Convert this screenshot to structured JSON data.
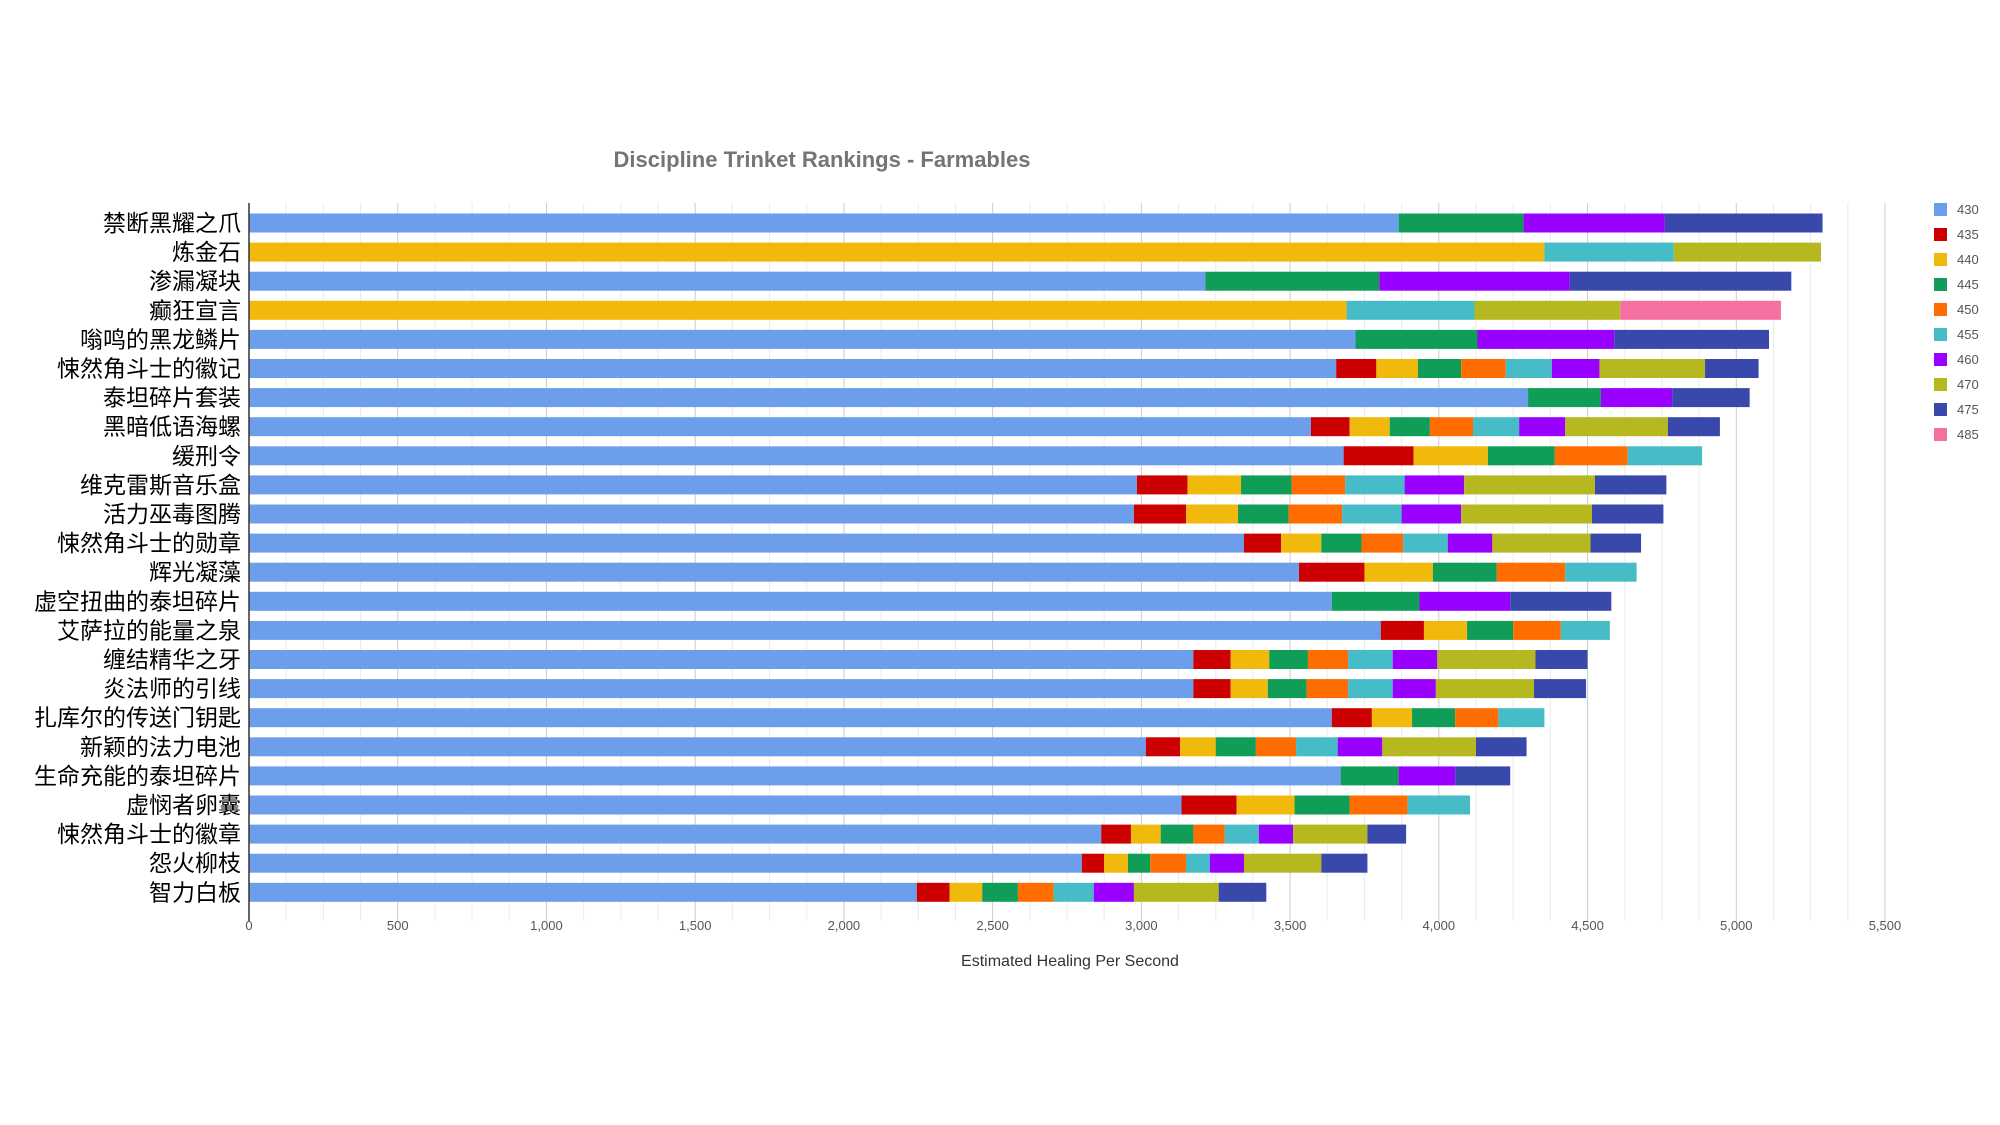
{
  "chart_data": {
    "type": "bar",
    "orientation": "horizontal",
    "stacked": true,
    "title": "Discipline Trinket Rankings - Farmables",
    "xlabel": "Estimated Healing Per Second",
    "ylabel": "",
    "xlim": [
      0,
      5500
    ],
    "xticks": [
      "0",
      "500",
      "1,000",
      "1,500",
      "2,000",
      "2,500",
      "3,000",
      "3,500",
      "4,000",
      "4,500",
      "5,000",
      "5,500"
    ],
    "grid": true,
    "legend_position": "right",
    "series_names": [
      "430",
      "435",
      "440",
      "445",
      "450",
      "455",
      "460",
      "470",
      "475",
      "485"
    ],
    "series_colors": [
      "#6d9eeb",
      "#cc0000",
      "#f1b90b",
      "#0f9d58",
      "#ff6d00",
      "#46bdc6",
      "#9900ff",
      "#b6b81f",
      "#3949ab",
      "#f56fa1"
    ],
    "categories": [
      "禁断黑耀之爪",
      "炼金石",
      "渗漏凝块",
      "癫狂宣言",
      "嗡鸣的黑龙鳞片",
      "悚然角斗士的徽记",
      "泰坦碎片套装",
      "黑暗低语海螺",
      "缓刑令",
      "维克雷斯音乐盒",
      "活力巫毒图腾",
      "悚然角斗士的勋章",
      "辉光凝藻",
      "虚空扭曲的泰坦碎片",
      "艾萨拉的能量之泉",
      "缠结精华之牙",
      "炎法师的引线",
      "扎库尔的传送门钥匙",
      "新颖的法力电池",
      "生命充能的泰坦碎片",
      "虚悯者卵囊",
      "悚然角斗士的徽章",
      "怨火柳枝",
      "智力白板"
    ],
    "values": [
      [
        3865,
        null,
        null,
        4285,
        null,
        null,
        4760,
        null,
        5290,
        null
      ],
      [
        null,
        null,
        4355,
        null,
        null,
        4790,
        null,
        5285,
        null,
        null
      ],
      [
        3215,
        null,
        null,
        3800,
        null,
        null,
        4440,
        null,
        5185,
        null
      ],
      [
        null,
        null,
        3690,
        null,
        null,
        4120,
        null,
        4610,
        null,
        5150
      ],
      [
        3720,
        null,
        null,
        4130,
        null,
        null,
        4590,
        null,
        5110,
        null
      ],
      [
        3655,
        3790,
        3930,
        4075,
        4225,
        4380,
        4540,
        4895,
        5075,
        null
      ],
      [
        4300,
        null,
        null,
        4545,
        null,
        null,
        4785,
        null,
        5045,
        null
      ],
      [
        3570,
        3700,
        3835,
        3970,
        4115,
        4270,
        4425,
        4770,
        4945,
        null
      ],
      [
        3680,
        3915,
        4165,
        4390,
        4635,
        4885,
        null,
        null,
        null,
        null
      ],
      [
        2985,
        3155,
        3335,
        3505,
        3685,
        3885,
        4085,
        4525,
        4765,
        null
      ],
      [
        2975,
        3150,
        3325,
        3495,
        3675,
        3875,
        4075,
        4515,
        4755,
        null
      ],
      [
        3345,
        3470,
        3605,
        3740,
        3880,
        4030,
        4180,
        4510,
        4680,
        null
      ],
      [
        3530,
        3750,
        3980,
        4195,
        4425,
        4665,
        null,
        null,
        null,
        null
      ],
      [
        3640,
        null,
        null,
        3935,
        null,
        null,
        4240,
        null,
        4580,
        null
      ],
      [
        3805,
        3950,
        4095,
        4250,
        4410,
        4575,
        null,
        null,
        null,
        null
      ],
      [
        3175,
        3300,
        3430,
        3560,
        3695,
        3845,
        3995,
        4325,
        4500,
        null
      ],
      [
        3175,
        3300,
        3425,
        3555,
        3695,
        3845,
        3990,
        4320,
        4495,
        null
      ],
      [
        3640,
        3775,
        3910,
        4055,
        4200,
        4355,
        null,
        null,
        null,
        null
      ],
      [
        3015,
        3130,
        3250,
        3385,
        3520,
        3660,
        3810,
        4125,
        4295,
        null
      ],
      [
        3670,
        null,
        null,
        3865,
        null,
        null,
        4055,
        null,
        4240,
        null
      ],
      [
        3135,
        3320,
        3515,
        3700,
        3895,
        4105,
        null,
        null,
        null,
        null
      ],
      [
        2865,
        2965,
        3065,
        3175,
        3280,
        3395,
        3510,
        3760,
        3890,
        null
      ],
      [
        2800,
        2875,
        2955,
        3030,
        3150,
        3230,
        3345,
        3605,
        3760,
        null
      ],
      [
        2245,
        2355,
        2465,
        2585,
        2705,
        2840,
        2975,
        3260,
        3420,
        null
      ]
    ]
  }
}
